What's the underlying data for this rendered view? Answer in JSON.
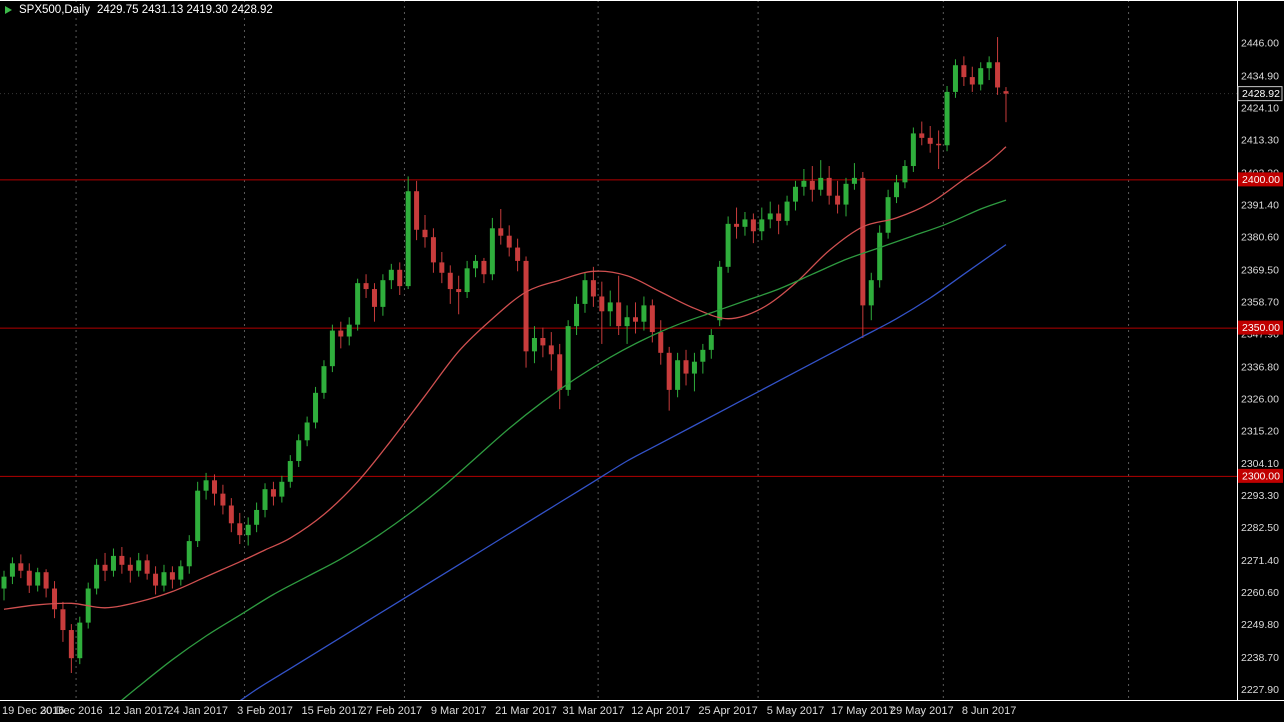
{
  "window": {
    "title": {
      "symbol": "SPX500,Daily",
      "ohlc": "2429.75 2431.13 2419.30 2428.92"
    }
  },
  "chart_data": {
    "type": "candlestick",
    "symbol": "SPX500",
    "timeframe": "Daily",
    "title": "SPX500,Daily",
    "current_quote": {
      "open": 2429.75,
      "high": 2431.13,
      "low": 2419.3,
      "close": 2428.92
    },
    "ylim": [
      2224.4,
      2460.5
    ],
    "grid": "monthly dashed vertical separators",
    "legend_position": "none",
    "y_axis_labels": [
      "2446.00",
      "2434.90",
      "2424.10",
      "2413.30",
      "2402.20",
      "2391.40",
      "2380.60",
      "2369.50",
      "2358.70",
      "2347.90",
      "2336.80",
      "2326.00",
      "2315.20",
      "2304.10",
      "2293.30",
      "2282.50",
      "2271.40",
      "2260.60",
      "2249.80",
      "2238.70",
      "2227.90"
    ],
    "x_axis_labels": [
      {
        "text": "19 Dec 2016",
        "i": 0
      },
      {
        "text": "30 Dec 2016",
        "i": 8
      },
      {
        "text": "12 Jan 2017",
        "i": 16
      },
      {
        "text": "24 Jan 2017",
        "i": 23
      },
      {
        "text": "3 Feb 2017",
        "i": 31
      },
      {
        "text": "15 Feb 2017",
        "i": 39
      },
      {
        "text": "27 Feb 2017",
        "i": 46
      },
      {
        "text": "9 Mar 2017",
        "i": 54
      },
      {
        "text": "21 Mar 2017",
        "i": 62
      },
      {
        "text": "31 Mar 2017",
        "i": 70
      },
      {
        "text": "12 Apr 2017",
        "i": 78
      },
      {
        "text": "25 Apr 2017",
        "i": 86
      },
      {
        "text": "5 May 2017",
        "i": 94
      },
      {
        "text": "17 May 2017",
        "i": 102
      },
      {
        "text": "29 May 2017",
        "i": 109
      },
      {
        "text": "8 Jun 2017",
        "i": 117
      }
    ],
    "month_separators_i": [
      8.5,
      28.5,
      47.5,
      70.5,
      89.5,
      111.5,
      133.5
    ],
    "horizontal_lines": [
      {
        "price": 2400.0,
        "label": "2400.00"
      },
      {
        "price": 2350.0,
        "label": "2350.00"
      },
      {
        "price": 2300.0,
        "label": "2300.00"
      }
    ],
    "current_price_tag": {
      "price": 2428.92,
      "label": "2428.92"
    },
    "moving_averages": [
      {
        "name": "fast",
        "color": "#D05050",
        "points": [
          [
            0,
            2255
          ],
          [
            4,
            2256.5
          ],
          [
            8,
            2257
          ],
          [
            12,
            2255.5
          ],
          [
            16,
            2257.5
          ],
          [
            20,
            2261
          ],
          [
            24,
            2266
          ],
          [
            28,
            2271
          ],
          [
            31,
            2275
          ],
          [
            34,
            2279
          ],
          [
            38,
            2287
          ],
          [
            42,
            2298
          ],
          [
            46,
            2312
          ],
          [
            50,
            2327
          ],
          [
            54,
            2342
          ],
          [
            58,
            2353
          ],
          [
            62,
            2362
          ],
          [
            66,
            2366
          ],
          [
            70,
            2369
          ],
          [
            74,
            2367.5
          ],
          [
            78,
            2362
          ],
          [
            82,
            2356.5
          ],
          [
            86,
            2353
          ],
          [
            90,
            2356.5
          ],
          [
            94,
            2365
          ],
          [
            98,
            2376
          ],
          [
            102,
            2384
          ],
          [
            106,
            2387
          ],
          [
            110,
            2392
          ],
          [
            114,
            2400
          ],
          [
            117,
            2406
          ],
          [
            119,
            2411
          ]
        ]
      },
      {
        "name": "medium",
        "color": "#2E9B40",
        "points": [
          [
            13,
            2222
          ],
          [
            16,
            2229
          ],
          [
            20,
            2238
          ],
          [
            24,
            2246
          ],
          [
            28,
            2253
          ],
          [
            32,
            2260
          ],
          [
            36,
            2266
          ],
          [
            40,
            2272
          ],
          [
            44,
            2279
          ],
          [
            48,
            2287
          ],
          [
            52,
            2296
          ],
          [
            56,
            2306
          ],
          [
            60,
            2316
          ],
          [
            64,
            2325
          ],
          [
            68,
            2333
          ],
          [
            72,
            2340
          ],
          [
            76,
            2346
          ],
          [
            80,
            2351
          ],
          [
            84,
            2355
          ],
          [
            88,
            2359
          ],
          [
            92,
            2363
          ],
          [
            96,
            2368
          ],
          [
            100,
            2373
          ],
          [
            104,
            2377
          ],
          [
            108,
            2381
          ],
          [
            112,
            2385
          ],
          [
            116,
            2390
          ],
          [
            119,
            2393
          ]
        ]
      },
      {
        "name": "slow",
        "color": "#3352C8",
        "points": [
          [
            26,
            2220
          ],
          [
            30,
            2228
          ],
          [
            34,
            2235
          ],
          [
            38,
            2242
          ],
          [
            42,
            2249
          ],
          [
            46,
            2256
          ],
          [
            50,
            2263
          ],
          [
            54,
            2270
          ],
          [
            58,
            2277
          ],
          [
            62,
            2284
          ],
          [
            66,
            2291
          ],
          [
            70,
            2298
          ],
          [
            74,
            2305
          ],
          [
            78,
            2311
          ],
          [
            82,
            2317
          ],
          [
            86,
            2323
          ],
          [
            90,
            2329
          ],
          [
            94,
            2335
          ],
          [
            98,
            2341
          ],
          [
            102,
            2347
          ],
          [
            106,
            2353
          ],
          [
            110,
            2360
          ],
          [
            114,
            2368
          ],
          [
            117,
            2374
          ],
          [
            119,
            2378
          ]
        ]
      }
    ],
    "candles_ohlc": [
      [
        2262.0,
        2268.0,
        2258.0,
        2266.0
      ],
      [
        2266.0,
        2272.5,
        2263.5,
        2270.5
      ],
      [
        2270.5,
        2273.5,
        2265.5,
        2268.0
      ],
      [
        2268.0,
        2270.5,
        2260.5,
        2263.0
      ],
      [
        2263.0,
        2269.0,
        2261.0,
        2267.5
      ],
      [
        2267.5,
        2268.5,
        2259.0,
        2262.0
      ],
      [
        2262.0,
        2264.5,
        2252.0,
        2255.0
      ],
      [
        2255.0,
        2257.5,
        2244.0,
        2248.0
      ],
      [
        2248.0,
        2250.0,
        2233.5,
        2238.5
      ],
      [
        2238.5,
        2252.5,
        2236.5,
        2250.5
      ],
      [
        2250.5,
        2264.0,
        2248.5,
        2262.0
      ],
      [
        2262.0,
        2272.0,
        2260.0,
        2270.0
      ],
      [
        2270.0,
        2274.0,
        2264.5,
        2268.0
      ],
      [
        2268.0,
        2275.5,
        2266.0,
        2273.0
      ],
      [
        2273.0,
        2276.0,
        2267.0,
        2270.0
      ],
      [
        2270.0,
        2272.5,
        2264.0,
        2268.0
      ],
      [
        2268.0,
        2274.0,
        2266.0,
        2271.5
      ],
      [
        2271.5,
        2273.5,
        2265.0,
        2267.0
      ],
      [
        2267.0,
        2269.5,
        2260.0,
        2263.0
      ],
      [
        2263.0,
        2270.0,
        2261.0,
        2267.5
      ],
      [
        2267.5,
        2269.5,
        2262.0,
        2265.0
      ],
      [
        2265.0,
        2271.5,
        2263.0,
        2269.5
      ],
      [
        2269.5,
        2280.0,
        2267.0,
        2278.0
      ],
      [
        2278.0,
        2298.0,
        2276.0,
        2295.0
      ],
      [
        2295.0,
        2301.0,
        2292.0,
        2298.5
      ],
      [
        2298.5,
        2300.5,
        2290.0,
        2294.0
      ],
      [
        2294.0,
        2297.0,
        2287.0,
        2290.0
      ],
      [
        2290.0,
        2292.5,
        2281.0,
        2284.0
      ],
      [
        2284.0,
        2287.5,
        2277.0,
        2280.0
      ],
      [
        2280.0,
        2286.0,
        2276.5,
        2283.5
      ],
      [
        2283.5,
        2291.0,
        2281.0,
        2288.5
      ],
      [
        2288.5,
        2297.5,
        2286.0,
        2295.5
      ],
      [
        2295.5,
        2298.0,
        2290.0,
        2293.0
      ],
      [
        2293.0,
        2300.0,
        2291.0,
        2298.0
      ],
      [
        2298.0,
        2307.0,
        2296.0,
        2305.0
      ],
      [
        2305.0,
        2314.0,
        2303.0,
        2312.0
      ],
      [
        2312.0,
        2320.0,
        2310.0,
        2318.0
      ],
      [
        2318.0,
        2330.0,
        2316.0,
        2328.0
      ],
      [
        2328.0,
        2339.0,
        2326.0,
        2337.0
      ],
      [
        2337.0,
        2351.0,
        2335.0,
        2349.0
      ],
      [
        2349.0,
        2352.0,
        2343.0,
        2347.0
      ],
      [
        2347.0,
        2353.5,
        2344.0,
        2351.0
      ],
      [
        2351.0,
        2366.5,
        2349.0,
        2365.0
      ],
      [
        2365.0,
        2368.0,
        2360.0,
        2363.0
      ],
      [
        2363.0,
        2365.0,
        2352.0,
        2357.0
      ],
      [
        2357.0,
        2368.0,
        2354.0,
        2366.0
      ],
      [
        2366.0,
        2371.5,
        2363.0,
        2369.5
      ],
      [
        2369.5,
        2372.0,
        2361.0,
        2364.0
      ],
      [
        2364.0,
        2401.0,
        2363.0,
        2396.0
      ],
      [
        2396.0,
        2399.5,
        2379.5,
        2383.0
      ],
      [
        2383.0,
        2388.0,
        2377.0,
        2380.5
      ],
      [
        2380.5,
        2383.5,
        2368.5,
        2372.0
      ],
      [
        2372.0,
        2375.5,
        2365.0,
        2368.5
      ],
      [
        2368.5,
        2371.0,
        2358.0,
        2363.0
      ],
      [
        2363.0,
        2367.5,
        2354.5,
        2362.0
      ],
      [
        2362.0,
        2372.5,
        2360.0,
        2370.0
      ],
      [
        2370.0,
        2374.5,
        2367.0,
        2372.5
      ],
      [
        2372.5,
        2373.5,
        2365.0,
        2368.0
      ],
      [
        2368.0,
        2387.0,
        2366.0,
        2383.5
      ],
      [
        2383.5,
        2390.0,
        2378.0,
        2381.0
      ],
      [
        2381.0,
        2384.5,
        2374.0,
        2377.0
      ],
      [
        2377.0,
        2380.0,
        2369.0,
        2372.5
      ],
      [
        2372.5,
        2374.0,
        2336.5,
        2342.0
      ],
      [
        2342.0,
        2350.5,
        2338.0,
        2346.5
      ],
      [
        2346.5,
        2350.0,
        2340.0,
        2344.0
      ],
      [
        2344.0,
        2348.5,
        2335.5,
        2341.0
      ],
      [
        2341.0,
        2344.5,
        2322.5,
        2329.0
      ],
      [
        2329.0,
        2352.5,
        2327.0,
        2350.5
      ],
      [
        2350.5,
        2360.5,
        2347.5,
        2358.0
      ],
      [
        2358.0,
        2368.5,
        2355.0,
        2366.0
      ],
      [
        2366.0,
        2370.5,
        2357.0,
        2360.5
      ],
      [
        2360.5,
        2365.5,
        2344.5,
        2355.5
      ],
      [
        2355.5,
        2362.5,
        2350.5,
        2358.5
      ],
      [
        2358.5,
        2367.5,
        2347.5,
        2350.5
      ],
      [
        2350.5,
        2357.5,
        2344.5,
        2353.5
      ],
      [
        2353.5,
        2358.5,
        2348.0,
        2352.0
      ],
      [
        2352.0,
        2360.5,
        2349.0,
        2357.5
      ],
      [
        2357.5,
        2359.5,
        2345.0,
        2348.5
      ],
      [
        2348.5,
        2352.5,
        2337.5,
        2341.5
      ],
      [
        2341.5,
        2343.5,
        2322.0,
        2329.0
      ],
      [
        2329.0,
        2341.5,
        2326.5,
        2339.0
      ],
      [
        2339.0,
        2342.5,
        2330.5,
        2334.5
      ],
      [
        2334.5,
        2341.5,
        2328.5,
        2338.5
      ],
      [
        2338.5,
        2344.5,
        2334.5,
        2342.5
      ],
      [
        2342.5,
        2349.5,
        2339.5,
        2347.5
      ],
      [
        2352.5,
        2372.5,
        2350.5,
        2370.5
      ],
      [
        2370.5,
        2387.5,
        2368.5,
        2385.0
      ],
      [
        2385.0,
        2390.5,
        2380.0,
        2384.0
      ],
      [
        2384.0,
        2389.0,
        2381.0,
        2386.5
      ],
      [
        2386.5,
        2388.5,
        2378.5,
        2382.5
      ],
      [
        2382.5,
        2390.5,
        2379.5,
        2386.5
      ],
      [
        2386.5,
        2392.5,
        2383.5,
        2388.5
      ],
      [
        2388.5,
        2391.5,
        2381.5,
        2386.0
      ],
      [
        2386.0,
        2394.5,
        2384.5,
        2392.5
      ],
      [
        2392.5,
        2399.5,
        2389.5,
        2397.5
      ],
      [
        2397.5,
        2403.5,
        2394.5,
        2399.5
      ],
      [
        2399.5,
        2404.5,
        2392.5,
        2396.5
      ],
      [
        2396.5,
        2406.5,
        2394.5,
        2400.5
      ],
      [
        2400.5,
        2404.5,
        2391.5,
        2394.5
      ],
      [
        2394.5,
        2399.5,
        2388.5,
        2391.5
      ],
      [
        2391.5,
        2400.5,
        2387.5,
        2398.5
      ],
      [
        2398.5,
        2405.5,
        2396.5,
        2400.5
      ],
      [
        2400.5,
        2402.5,
        2346.5,
        2357.5
      ],
      [
        2357.5,
        2368.5,
        2352.5,
        2366.0
      ],
      [
        2366.0,
        2384.5,
        2363.5,
        2382.0
      ],
      [
        2382.0,
        2396.5,
        2380.0,
        2394.0
      ],
      [
        2394.0,
        2401.5,
        2392.0,
        2399.0
      ],
      [
        2399.0,
        2406.5,
        2397.0,
        2404.5
      ],
      [
        2404.5,
        2417.5,
        2402.5,
        2415.5
      ],
      [
        2415.5,
        2419.5,
        2411.5,
        2414.0
      ],
      [
        2414.0,
        2418.0,
        2409.0,
        2412.0
      ],
      [
        2412.0,
        2416.5,
        2403.5,
        2411.5
      ],
      [
        2411.5,
        2431.5,
        2409.5,
        2429.5
      ],
      [
        2429.5,
        2440.5,
        2427.5,
        2438.5
      ],
      [
        2438.5,
        2441.5,
        2431.5,
        2434.5
      ],
      [
        2434.5,
        2438.0,
        2429.5,
        2432.0
      ],
      [
        2432.0,
        2439.5,
        2430.0,
        2437.5
      ],
      [
        2437.5,
        2441.5,
        2433.5,
        2439.5
      ],
      [
        2439.5,
        2448.0,
        2428.5,
        2431.0
      ],
      [
        2429.75,
        2431.13,
        2419.3,
        2428.92
      ]
    ],
    "colors": {
      "background": "#000000",
      "bull": "#2FAE3C",
      "bear": "#C83C3C",
      "hline": "#B20000",
      "hline_tag_bg": "#C00000",
      "tag_text": "#FFFFFF",
      "current_tag_bg": "#050505",
      "current_tag_border": "#C8C8C8",
      "axis_text": "#DCDCDC",
      "separator": "#5A5A5A",
      "border": "#FFFFFF"
    }
  }
}
